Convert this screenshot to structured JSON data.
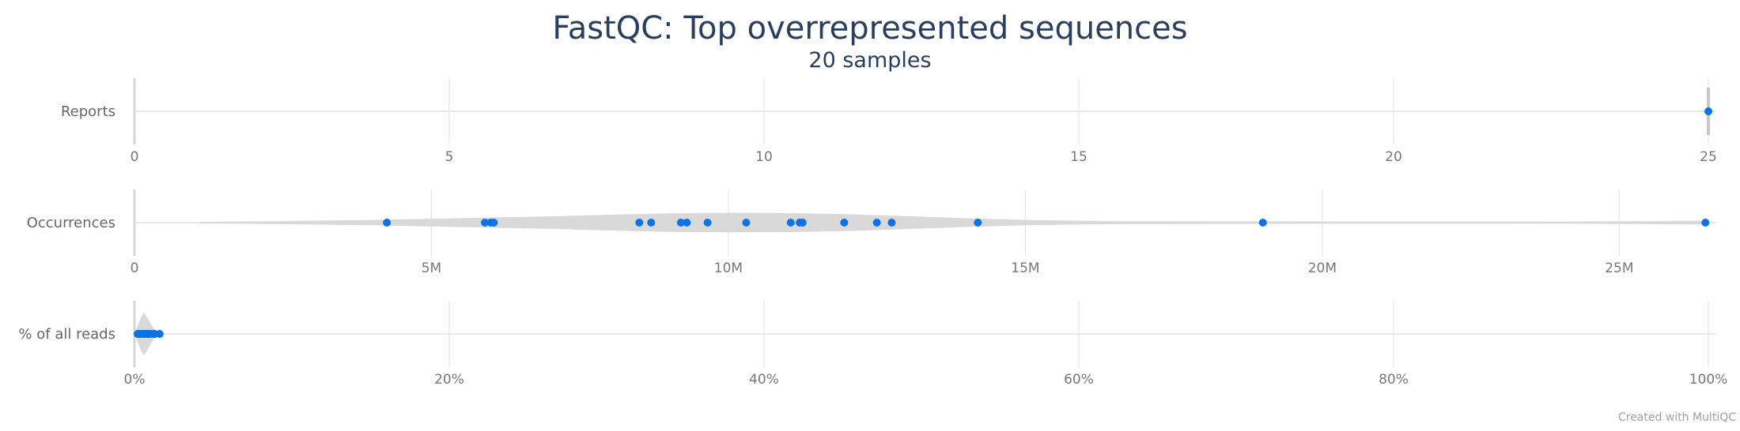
{
  "chart_data": {
    "type": "violin",
    "title": "FastQC: Top overrepresented sequences",
    "subtitle": "20 samples",
    "credit": "Created with MultiQC",
    "point_color": "#0b72e7",
    "violin_color": "#d9d9d9",
    "grid": true,
    "panels": [
      {
        "label": "Reports",
        "range": [
          0,
          25
        ],
        "ticks": [
          0,
          5,
          10,
          15,
          20,
          25
        ],
        "tick_labels": [
          "0",
          "5",
          "10",
          "15",
          "20",
          "25"
        ],
        "values": [
          25
        ],
        "density": [
          [
            24.98,
            0.05
          ],
          [
            25,
            0.32
          ],
          [
            25.02,
            0.05
          ]
        ]
      },
      {
        "label": "Occurrences",
        "range": [
          0,
          26500000
        ],
        "ticks": [
          0,
          5000000,
          10000000,
          15000000,
          20000000,
          25000000
        ],
        "tick_labels": [
          "0",
          "5M",
          "10M",
          "15M",
          "20M",
          "25M"
        ],
        "values": [
          4250000,
          5900000,
          6000000,
          6050000,
          8500000,
          8700000,
          9200000,
          9300000,
          9650000,
          10300000,
          11050000,
          11200000,
          11250000,
          11950000,
          12500000,
          12750000,
          14200000,
          19000000,
          26450000
        ],
        "density": [
          [
            1100000,
            0.0
          ],
          [
            2500000,
            0.03
          ],
          [
            4000000,
            0.08
          ],
          [
            5000000,
            0.13
          ],
          [
            6000000,
            0.18
          ],
          [
            7000000,
            0.23
          ],
          [
            8000000,
            0.3
          ],
          [
            9000000,
            0.36
          ],
          [
            10000000,
            0.38
          ],
          [
            11000000,
            0.37
          ],
          [
            12000000,
            0.32
          ],
          [
            13000000,
            0.24
          ],
          [
            14000000,
            0.15
          ],
          [
            15000000,
            0.08
          ],
          [
            16000000,
            0.04
          ],
          [
            17000000,
            0.025
          ],
          [
            18500000,
            0.02
          ],
          [
            19000000,
            0.02
          ],
          [
            20500000,
            0.015
          ],
          [
            22000000,
            0.012
          ],
          [
            24000000,
            0.01
          ],
          [
            25500000,
            0.03
          ],
          [
            26500000,
            0.05
          ]
        ]
      },
      {
        "label": "% of all reads",
        "range": [
          0,
          100
        ],
        "ticks": [
          0,
          20,
          40,
          60,
          80,
          100
        ],
        "tick_labels": [
          "0%",
          "20%",
          "40%",
          "60%",
          "80%",
          "100%"
        ],
        "values": [
          0.2,
          0.3,
          0.4,
          0.45,
          0.5,
          0.55,
          0.6,
          0.65,
          0.7,
          0.75,
          0.8,
          0.85,
          0.9,
          0.95,
          1.1,
          1.2,
          1.3,
          1.6
        ],
        "density": [
          [
            0.05,
            0.0
          ],
          [
            0.2,
            0.25
          ],
          [
            0.4,
            0.6
          ],
          [
            0.6,
            0.85
          ],
          [
            0.8,
            0.65
          ],
          [
            1.0,
            0.4
          ],
          [
            1.2,
            0.18
          ],
          [
            1.5,
            0.06
          ],
          [
            1.8,
            0.0
          ]
        ]
      }
    ]
  }
}
